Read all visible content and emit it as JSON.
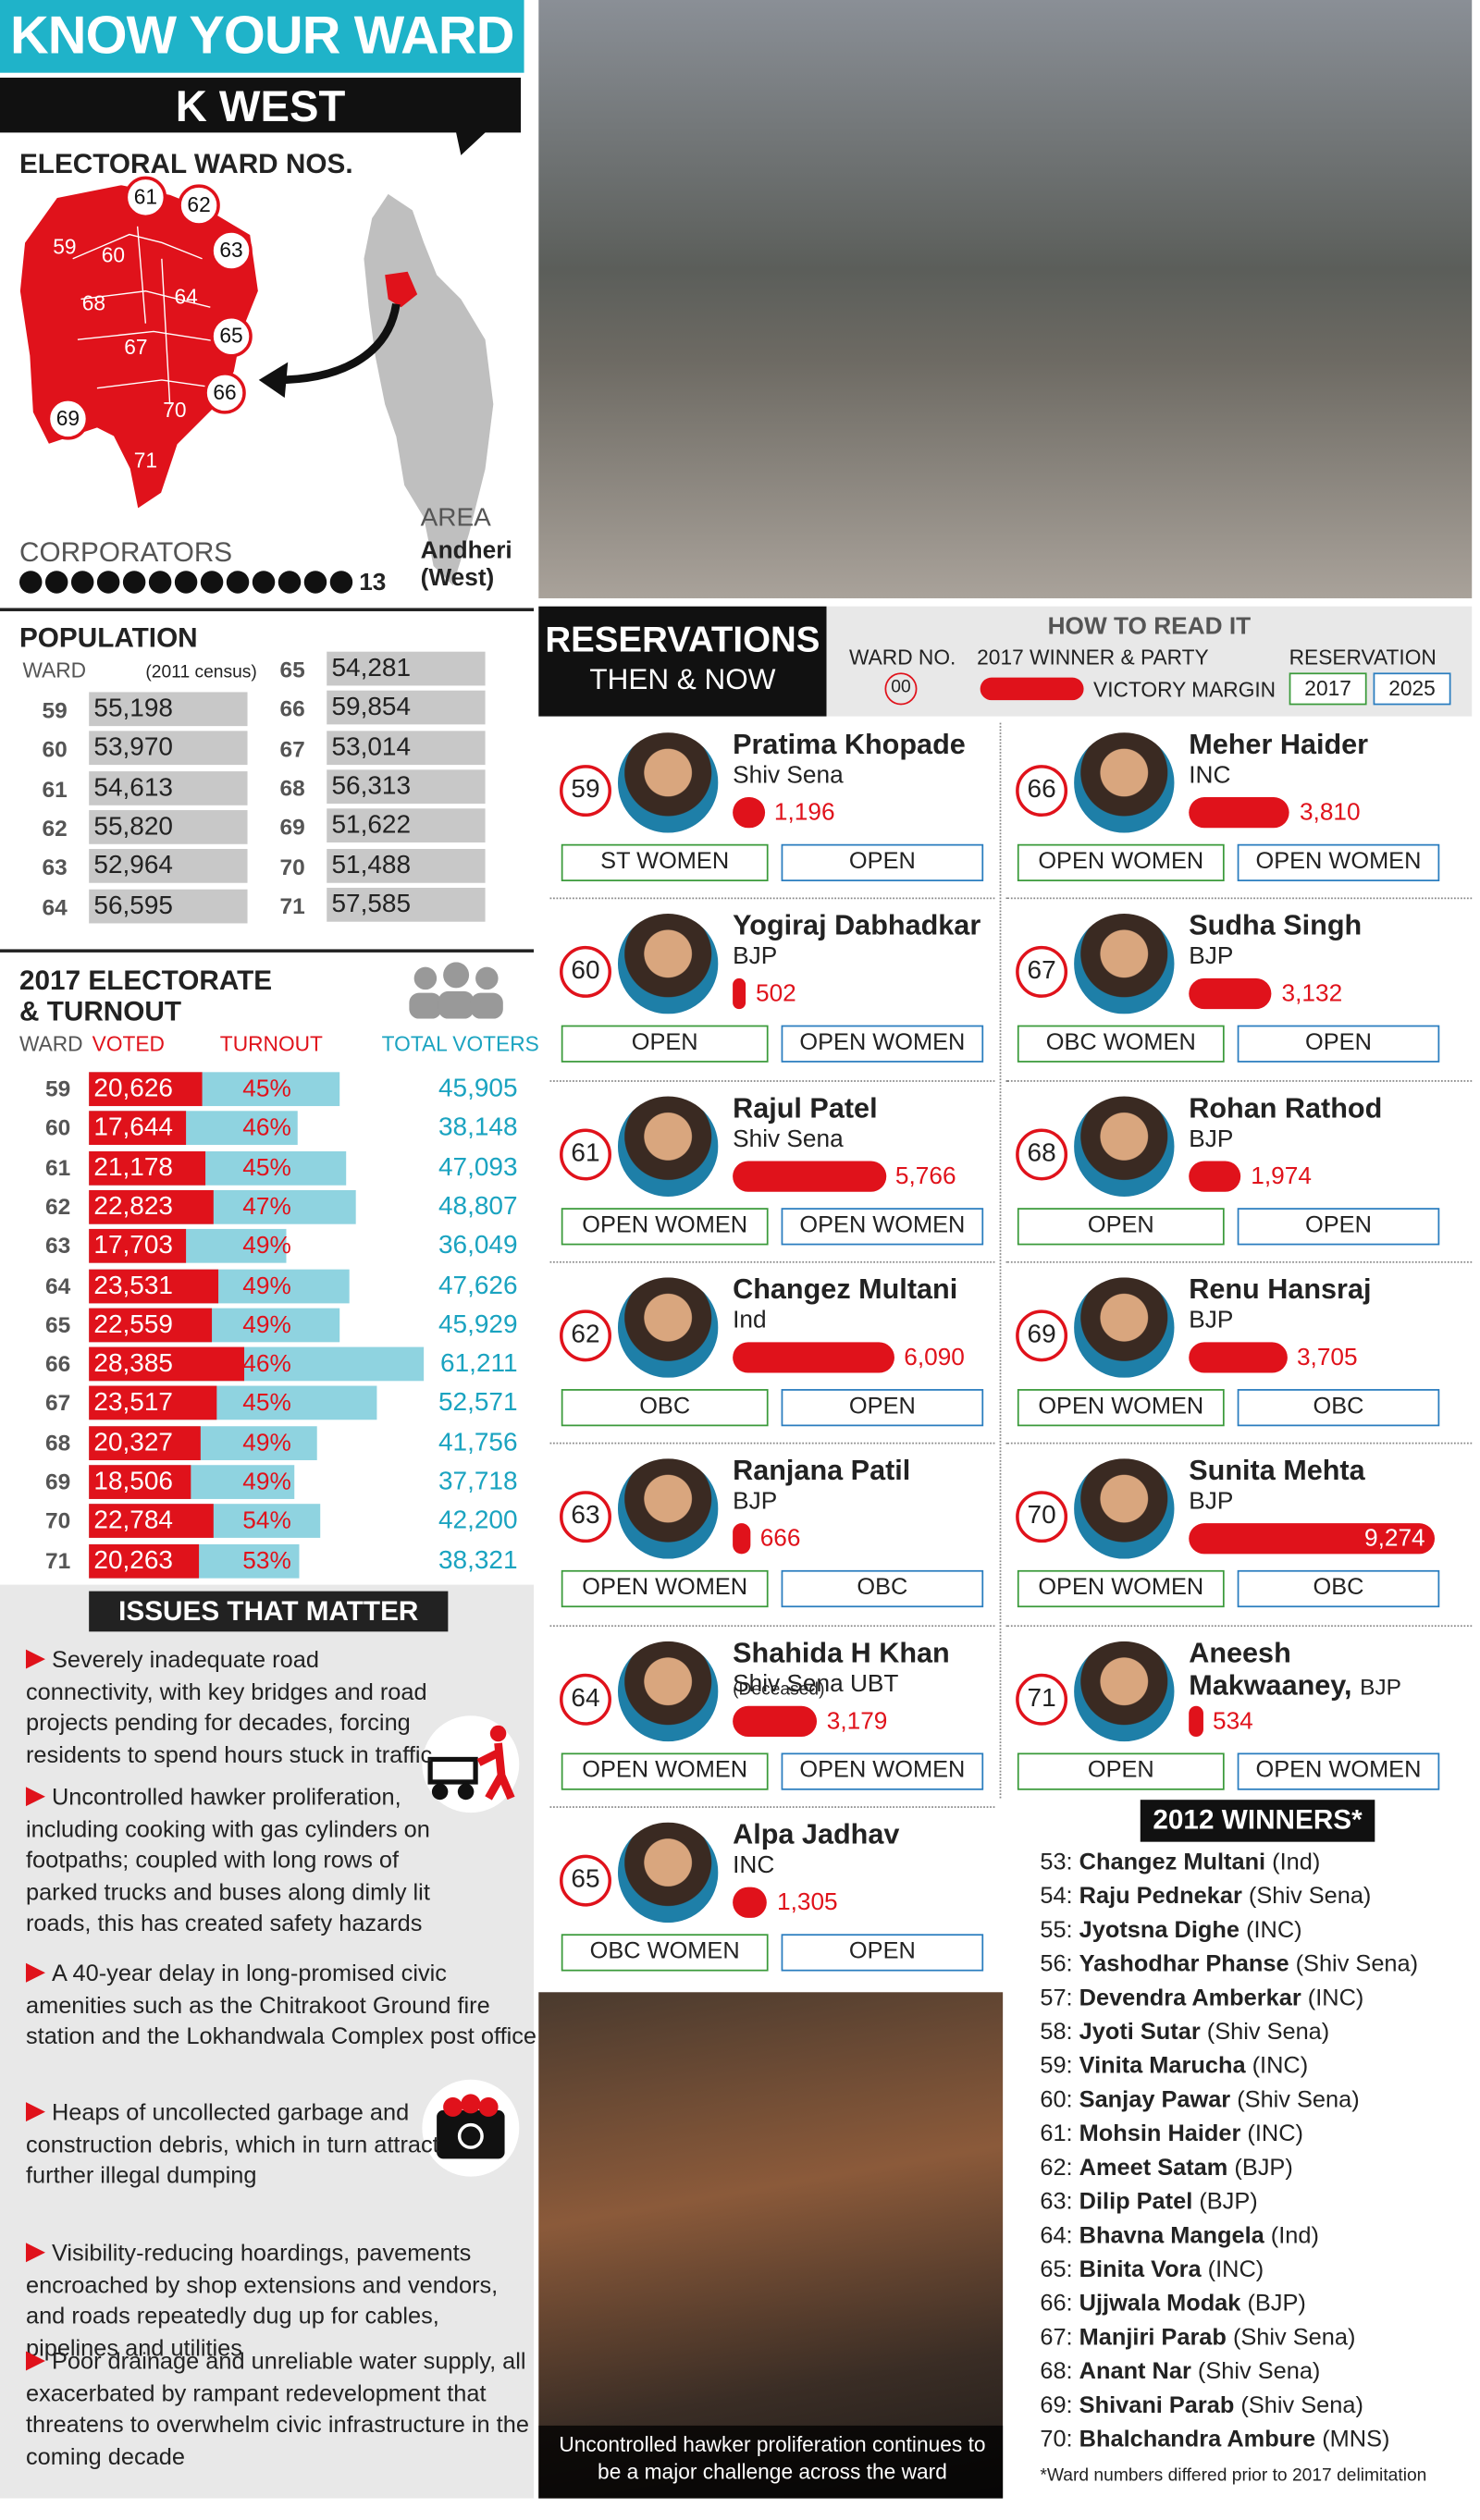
{
  "header": {
    "title": "KNOW YOUR WARD",
    "ward": "K WEST"
  },
  "map": {
    "title": "ELECTORAL WARD NOS.",
    "wards": [
      "59",
      "60",
      "61",
      "62",
      "63",
      "64",
      "65",
      "66",
      "67",
      "68",
      "69",
      "70",
      "71"
    ],
    "corporators_label": "CORPORATORS",
    "corporators_count": 13,
    "area_label": "AREA",
    "area": "Andheri (West)"
  },
  "population": {
    "title": "POPULATION",
    "ward_label": "WARD",
    "census_note": "(2011 census)",
    "rows": [
      {
        "ward": "59",
        "population": "55,198"
      },
      {
        "ward": "60",
        "population": "53,970"
      },
      {
        "ward": "61",
        "population": "54,613"
      },
      {
        "ward": "62",
        "population": "55,820"
      },
      {
        "ward": "63",
        "population": "52,964"
      },
      {
        "ward": "64",
        "population": "56,595"
      },
      {
        "ward": "65",
        "population": "54,281"
      },
      {
        "ward": "66",
        "population": "59,854"
      },
      {
        "ward": "67",
        "population": "53,014"
      },
      {
        "ward": "68",
        "population": "56,313"
      },
      {
        "ward": "69",
        "population": "51,622"
      },
      {
        "ward": "70",
        "population": "51,488"
      },
      {
        "ward": "71",
        "population": "57,585"
      }
    ]
  },
  "electorate": {
    "title_lines": [
      "2017 ELECTORATE",
      "& TURNOUT"
    ],
    "ward_label": "WARD",
    "voted_label": "VOTED",
    "turnout_label": "TURNOUT",
    "total_label": "TOTAL VOTERS",
    "rows": [
      {
        "ward": "59",
        "voted": {
          "value": 20626,
          "label": "20,626"
        },
        "turnout": "45%",
        "total": {
          "value": 45905,
          "label": "45,905"
        }
      },
      {
        "ward": "60",
        "voted": {
          "value": 17644,
          "label": "17,644"
        },
        "turnout": "46%",
        "total": {
          "value": 38148,
          "label": "38,148"
        }
      },
      {
        "ward": "61",
        "voted": {
          "value": 21178,
          "label": "21,178"
        },
        "turnout": "45%",
        "total": {
          "value": 47093,
          "label": "47,093"
        }
      },
      {
        "ward": "62",
        "voted": {
          "value": 22823,
          "label": "22,823"
        },
        "turnout": "47%",
        "total": {
          "value": 48807,
          "label": "48,807"
        }
      },
      {
        "ward": "63",
        "voted": {
          "value": 17703,
          "label": "17,703"
        },
        "turnout": "49%",
        "total": {
          "value": 36049,
          "label": "36,049"
        }
      },
      {
        "ward": "64",
        "voted": {
          "value": 23531,
          "label": "23,531"
        },
        "turnout": "49%",
        "total": {
          "value": 47626,
          "label": "47,626"
        }
      },
      {
        "ward": "65",
        "voted": {
          "value": 22559,
          "label": "22,559"
        },
        "turnout": "49%",
        "total": {
          "value": 45929,
          "label": "45,929"
        }
      },
      {
        "ward": "66",
        "voted": {
          "value": 28385,
          "label": "28,385"
        },
        "turnout": "46%",
        "total": {
          "value": 61211,
          "label": "61,211"
        }
      },
      {
        "ward": "67",
        "voted": {
          "value": 23517,
          "label": "23,517"
        },
        "turnout": "45%",
        "total": {
          "value": 52571,
          "label": "52,571"
        }
      },
      {
        "ward": "68",
        "voted": {
          "value": 20327,
          "label": "20,327"
        },
        "turnout": "49%",
        "total": {
          "value": 41756,
          "label": "41,756"
        }
      },
      {
        "ward": "69",
        "voted": {
          "value": 18506,
          "label": "18,506"
        },
        "turnout": "49%",
        "total": {
          "value": 37718,
          "label": "37,718"
        }
      },
      {
        "ward": "70",
        "voted": {
          "value": 22784,
          "label": "22,784"
        },
        "turnout": "54%",
        "total": {
          "value": 42200,
          "label": "42,200"
        }
      },
      {
        "ward": "71",
        "voted": {
          "value": 20263,
          "label": "20,263"
        },
        "turnout": "53%",
        "total": {
          "value": 38321,
          "label": "38,321"
        }
      }
    ]
  },
  "issues": {
    "title": "ISSUES THAT MATTER",
    "items": [
      "Severely inadequate road connectivity, with key bridges and road projects pending for decades, forcing residents to spend hours stuck in traffic",
      "Uncontrolled hawker proliferation, including cooking with gas cylinders on footpaths; coupled with long rows of parked trucks and buses along dimly lit roads, this has created safety hazards",
      "A 40-year delay in long-promised civic amenities such as the Chitrakoot Ground fire station and the Lokhandwala Complex post office",
      "Heaps of uncollected garbage and construction debris, which in turn attract further illegal dumping",
      "Visibility-reducing hoardings, pavements encroached by shop extensions and vendors, and roads repeatedly dug up for cables, pipelines and utilities",
      "Poor drainage and unreliable water supply, all exacerbated by rampant redevelopment that threatens to overwhelm civic infrastructure in the coming decade"
    ]
  },
  "reservations": {
    "title": "RESERVATIONS",
    "subtitle": "THEN & NOW",
    "legend": {
      "title": "HOW TO READ IT",
      "ward_no": "WARD NO.",
      "ward_example": "00",
      "winner": "2017 WINNER & PARTY",
      "margin": "VICTORY MARGIN",
      "reservation": "RESERVATION",
      "year1": "2017",
      "year2": "2025"
    },
    "wards": [
      {
        "ward": "59",
        "name": "Pratima Khopade",
        "party": "Shiv Sena",
        "margin": {
          "value": 1196,
          "label": "1,196"
        },
        "res_2017": "ST WOMEN",
        "res_2025": "OPEN"
      },
      {
        "ward": "60",
        "name": "Yogiraj Dabhadkar",
        "party": "BJP",
        "margin": {
          "value": 502,
          "label": "502"
        },
        "res_2017": "OPEN",
        "res_2025": "OPEN WOMEN"
      },
      {
        "ward": "61",
        "name": "Rajul Patel",
        "party": "Shiv Sena",
        "margin": {
          "value": 5766,
          "label": "5,766"
        },
        "res_2017": "OPEN WOMEN",
        "res_2025": "OPEN WOMEN"
      },
      {
        "ward": "62",
        "name": "Changez Multani",
        "party": "Ind",
        "margin": {
          "value": 6090,
          "label": "6,090"
        },
        "res_2017": "OBC",
        "res_2025": "OPEN"
      },
      {
        "ward": "63",
        "name": "Ranjana Patil",
        "party": "BJP",
        "margin": {
          "value": 666,
          "label": "666"
        },
        "res_2017": "OPEN WOMEN",
        "res_2025": "OBC"
      },
      {
        "ward": "64",
        "name": "Shahida H Khan",
        "note": "(Deceased)",
        "party": "Shiv Sena UBT",
        "margin": {
          "value": 3179,
          "label": "3,179"
        },
        "res_2017": "OPEN WOMEN",
        "res_2025": "OPEN WOMEN"
      },
      {
        "ward": "65",
        "name": "Alpa Jadhav",
        "party": "INC",
        "margin": {
          "value": 1305,
          "label": "1,305"
        },
        "res_2017": "OBC WOMEN",
        "res_2025": "OPEN"
      },
      {
        "ward": "66",
        "name": "Meher Haider",
        "party": "INC",
        "margin": {
          "value": 3810,
          "label": "3,810"
        },
        "res_2017": "OPEN WOMEN",
        "res_2025": "OPEN WOMEN"
      },
      {
        "ward": "67",
        "name": "Sudha Singh",
        "party": "BJP",
        "margin": {
          "value": 3132,
          "label": "3,132"
        },
        "res_2017": "OBC WOMEN",
        "res_2025": "OPEN"
      },
      {
        "ward": "68",
        "name": "Rohan Rathod",
        "party": "BJP",
        "margin": {
          "value": 1974,
          "label": "1,974"
        },
        "res_2017": "OPEN",
        "res_2025": "OPEN"
      },
      {
        "ward": "69",
        "name": "Renu Hansraj",
        "party": "BJP",
        "margin": {
          "value": 3705,
          "label": "3,705"
        },
        "res_2017": "OPEN WOMEN",
        "res_2025": "OBC"
      },
      {
        "ward": "70",
        "name": "Sunita Mehta",
        "party": "BJP",
        "margin": {
          "value": 9274,
          "label": "9,274"
        },
        "res_2017": "OPEN WOMEN",
        "res_2025": "OBC"
      },
      {
        "ward": "71",
        "name": "Aneesh Makwaaney,",
        "party": "BJP",
        "margin": {
          "value": 534,
          "label": "534"
        },
        "res_2017": "OPEN",
        "res_2025": "OPEN WOMEN"
      }
    ]
  },
  "photo_caption": "Uncontrolled hawker proliferation continues to be a major challenge across the ward",
  "winners_2012": {
    "title": "2012 WINNERS*",
    "rows": [
      {
        "ward": "53:",
        "name": "Changez Multani",
        "party": "(Ind)"
      },
      {
        "ward": "54:",
        "name": "Raju Pednekar",
        "party": "(Shiv Sena)"
      },
      {
        "ward": "55:",
        "name": "Jyotsna Dighe",
        "party": "(INC)"
      },
      {
        "ward": "56:",
        "name": "Yashodhar Phanse",
        "party": "(Shiv Sena)"
      },
      {
        "ward": "57:",
        "name": "Devendra Amberkar",
        "party": "(INC)"
      },
      {
        "ward": "58:",
        "name": "Jyoti Sutar",
        "party": "(Shiv Sena)"
      },
      {
        "ward": "59:",
        "name": "Vinita Marucha",
        "party": "(INC)"
      },
      {
        "ward": "60:",
        "name": "Sanjay Pawar",
        "party": "(Shiv Sena)"
      },
      {
        "ward": "61:",
        "name": "Mohsin Haider",
        "party": "(INC)"
      },
      {
        "ward": "62:",
        "name": "Ameet Satam",
        "party": "(BJP)"
      },
      {
        "ward": "63:",
        "name": "Dilip Patel",
        "party": "(BJP)"
      },
      {
        "ward": "64:",
        "name": "Bhavna Mangela",
        "party": "(Ind)"
      },
      {
        "ward": "65:",
        "name": "Binita Vora",
        "party": "(INC)"
      },
      {
        "ward": "66:",
        "name": "Ujjwala Modak",
        "party": "(BJP)"
      },
      {
        "ward": "67:",
        "name": "Manjiri Parab",
        "party": "(Shiv Sena)"
      },
      {
        "ward": "68:",
        "name": "Anant Nar",
        "party": "(Shiv Sena)"
      },
      {
        "ward": "69:",
        "name": "Shivani Parab",
        "party": "(Shiv Sena)"
      },
      {
        "ward": "70:",
        "name": "Bhalchandra Ambure",
        "party": "(MNS)"
      }
    ],
    "note": "*Ward numbers differed prior to 2017 delimitation"
  }
}
